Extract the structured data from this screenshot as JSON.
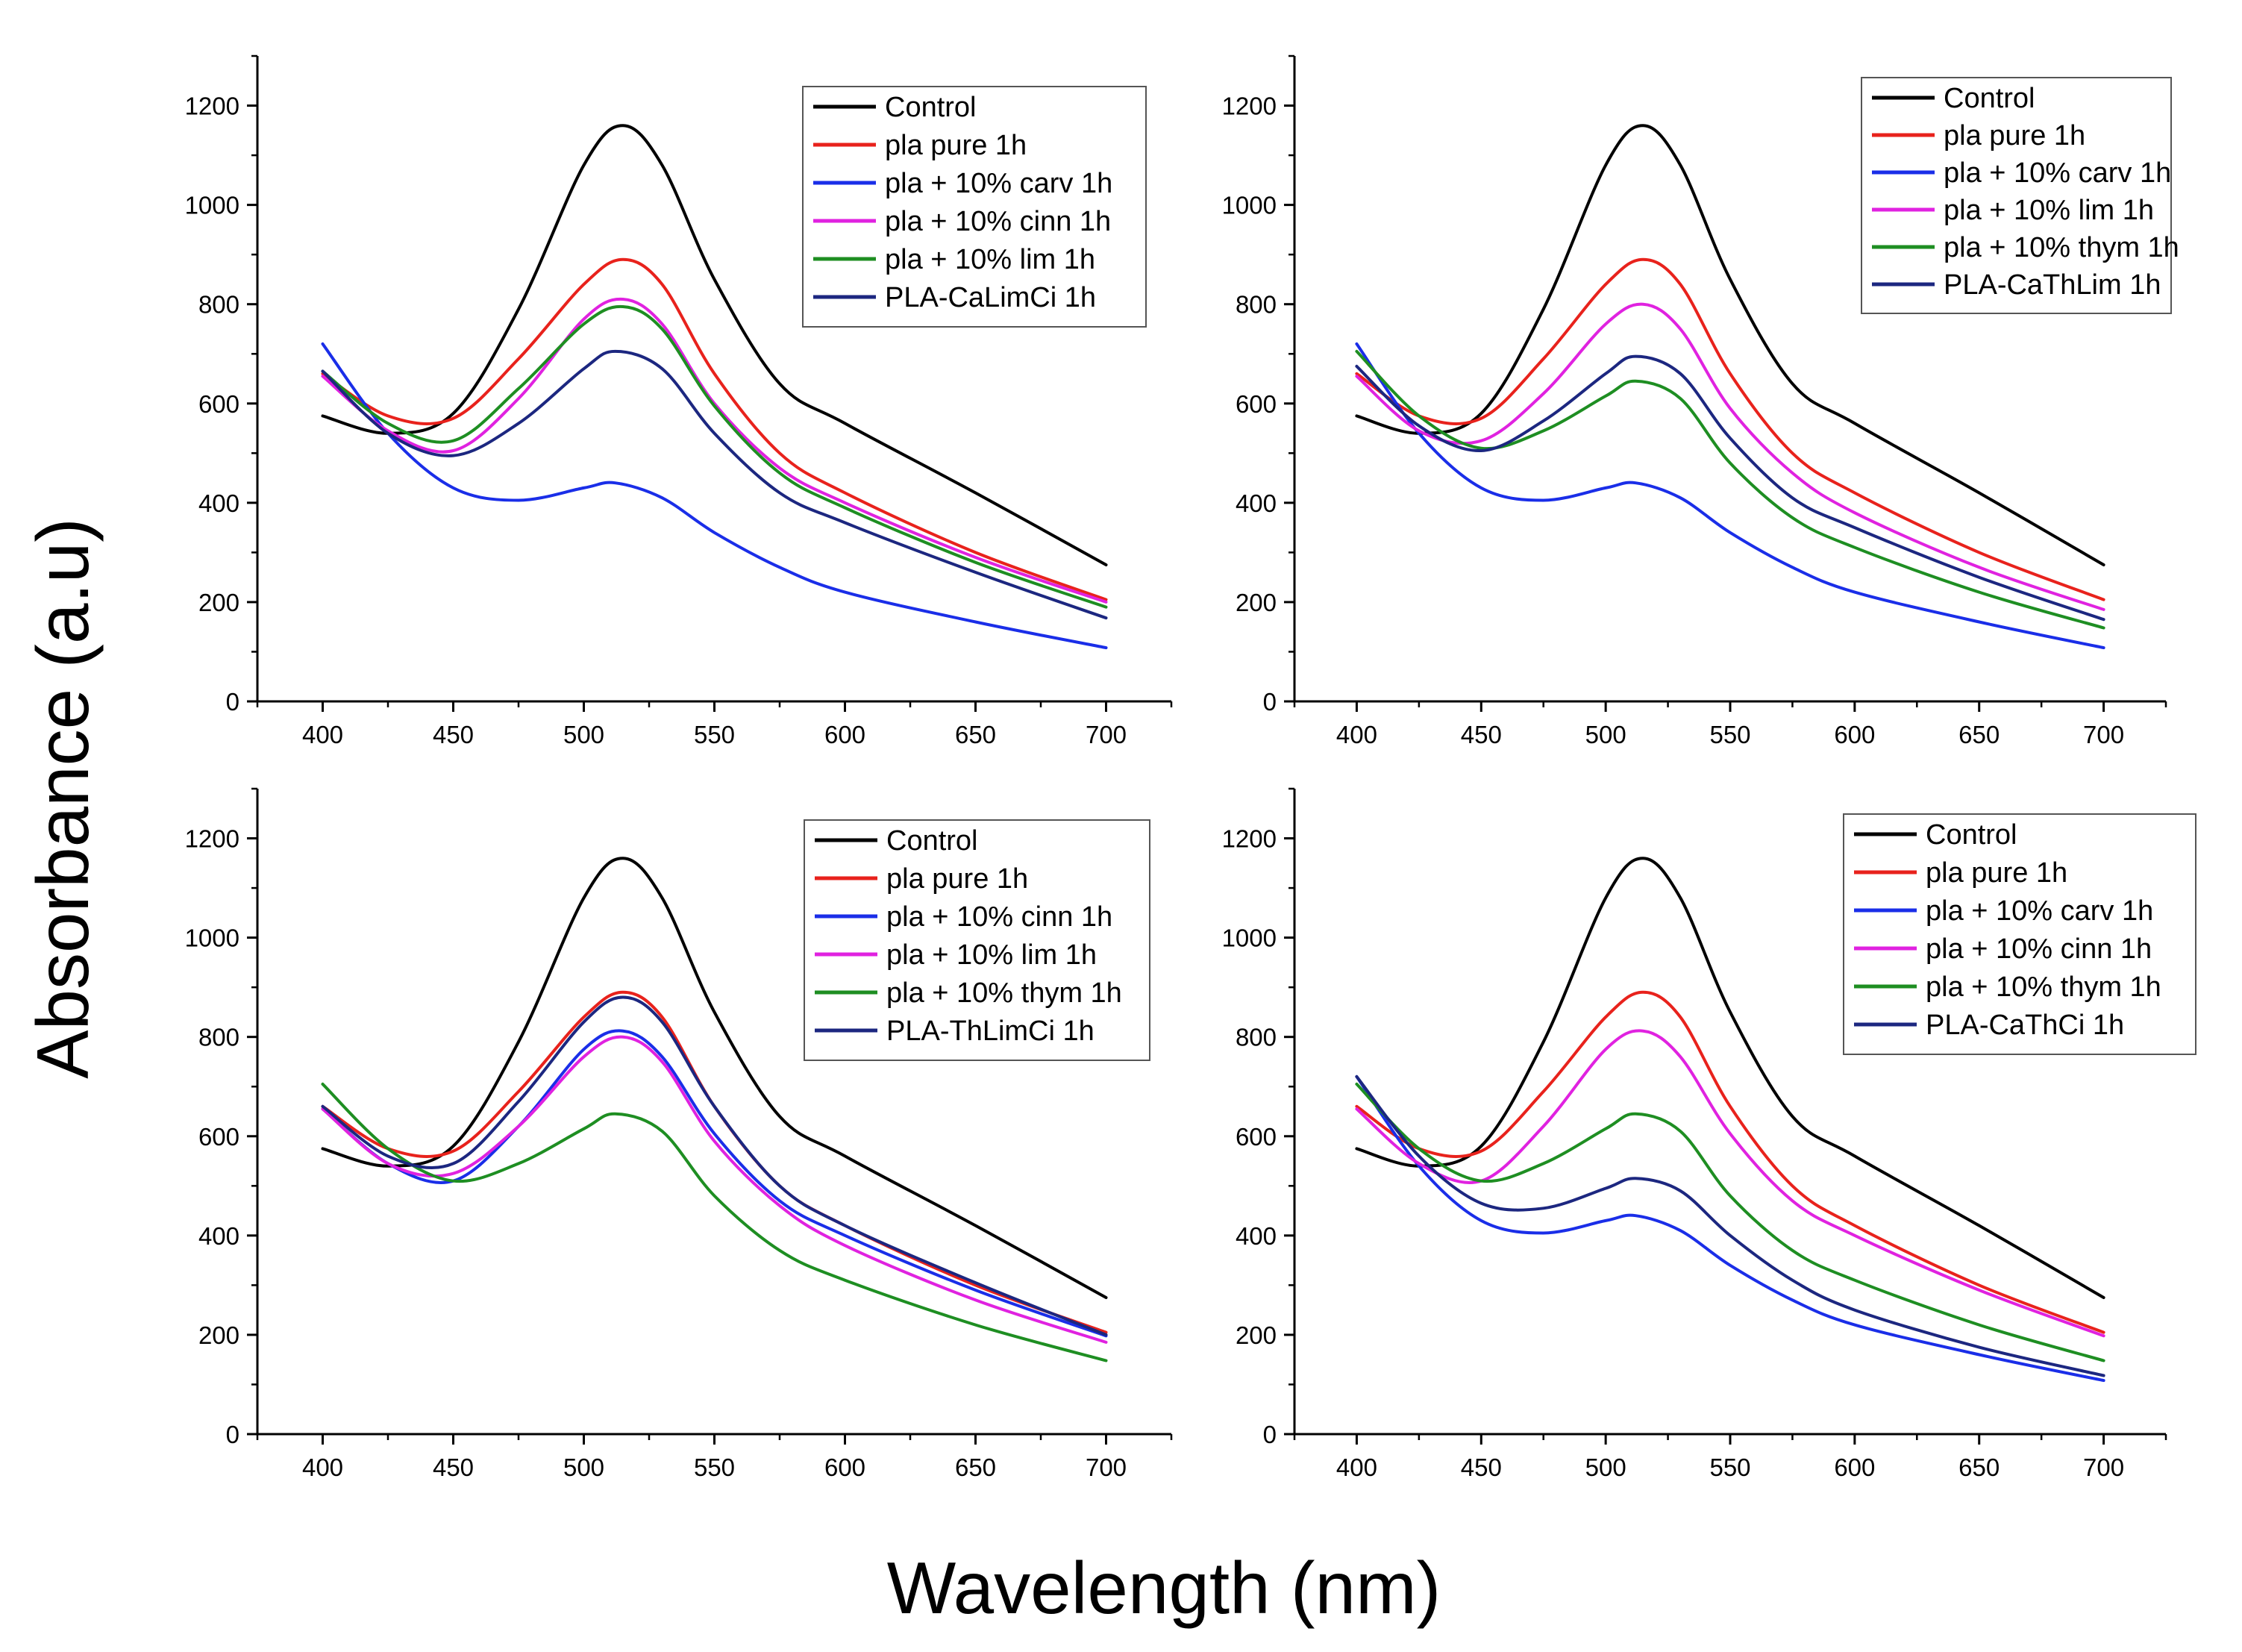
{
  "figure": {
    "ylabel": "Absorbance (a.u)",
    "xlabel": "Wavelength (nm)"
  },
  "chart_data": [
    {
      "type": "line",
      "title": "",
      "xlim": [
        375,
        725
      ],
      "ylim": [
        0,
        1300
      ],
      "xticks": [
        400,
        450,
        500,
        550,
        600,
        650,
        700
      ],
      "yticks": [
        0,
        200,
        400,
        600,
        800,
        1000,
        1200
      ],
      "legend_position": "top-right",
      "series": [
        {
          "name": "Control",
          "color": "#000000",
          "x": [
            400,
            425,
            450,
            475,
            500,
            515,
            530,
            550,
            575,
            600,
            650,
            700
          ],
          "y": [
            575,
            540,
            580,
            790,
            1080,
            1160,
            1080,
            850,
            640,
            560,
            420,
            275
          ]
        },
        {
          "name": "pla pure 1h",
          "color": "#e8221c",
          "x": [
            400,
            425,
            450,
            475,
            500,
            515,
            530,
            550,
            575,
            600,
            650,
            700
          ],
          "y": [
            660,
            575,
            570,
            690,
            840,
            890,
            840,
            660,
            500,
            420,
            300,
            205
          ]
        },
        {
          "name": "pla + 10% carv 1h",
          "color": "#1a2ee8",
          "x": [
            400,
            425,
            450,
            475,
            500,
            512,
            530,
            550,
            575,
            600,
            650,
            700
          ],
          "y": [
            720,
            540,
            430,
            405,
            430,
            440,
            410,
            340,
            270,
            220,
            160,
            108
          ]
        },
        {
          "name": "pla + 10% cinn 1h",
          "color": "#e022e0",
          "x": [
            400,
            425,
            450,
            475,
            500,
            515,
            530,
            550,
            575,
            600,
            650,
            700
          ],
          "y": [
            655,
            545,
            505,
            610,
            770,
            810,
            760,
            600,
            470,
            400,
            290,
            200
          ]
        },
        {
          "name": "pla + 10% lim 1h",
          "color": "#1e8e22",
          "x": [
            400,
            425,
            450,
            475,
            500,
            515,
            530,
            550,
            575,
            600,
            650,
            700
          ],
          "y": [
            665,
            560,
            525,
            630,
            760,
            795,
            750,
            595,
            460,
            390,
            280,
            190
          ]
        },
        {
          "name": "PLA-CaLimCi 1h",
          "color": "#1c2780",
          "x": [
            400,
            425,
            450,
            475,
            500,
            512,
            530,
            550,
            575,
            600,
            650,
            700
          ],
          "y": [
            665,
            540,
            495,
            560,
            670,
            705,
            670,
            540,
            420,
            360,
            260,
            168
          ]
        }
      ]
    },
    {
      "type": "line",
      "title": "",
      "xlim": [
        375,
        725
      ],
      "ylim": [
        0,
        1300
      ],
      "xticks": [
        400,
        450,
        500,
        550,
        600,
        650,
        700
      ],
      "yticks": [
        0,
        200,
        400,
        600,
        800,
        1000,
        1200
      ],
      "legend_position": "top-right",
      "series": [
        {
          "name": "Control",
          "color": "#000000",
          "x": [
            400,
            425,
            450,
            475,
            500,
            515,
            530,
            550,
            575,
            600,
            650,
            700
          ],
          "y": [
            575,
            540,
            580,
            790,
            1080,
            1160,
            1080,
            850,
            640,
            560,
            420,
            275
          ]
        },
        {
          "name": "pla pure 1h",
          "color": "#e8221c",
          "x": [
            400,
            425,
            450,
            475,
            500,
            515,
            530,
            550,
            575,
            600,
            650,
            700
          ],
          "y": [
            660,
            575,
            570,
            690,
            840,
            890,
            840,
            660,
            500,
            420,
            300,
            205
          ]
        },
        {
          "name": "pla + 10% carv 1h",
          "color": "#1a2ee8",
          "x": [
            400,
            425,
            450,
            475,
            500,
            512,
            530,
            550,
            575,
            600,
            650,
            700
          ],
          "y": [
            720,
            540,
            430,
            405,
            430,
            440,
            410,
            340,
            270,
            220,
            160,
            108
          ]
        },
        {
          "name": "pla + 10% lim 1h",
          "color": "#e022e0",
          "x": [
            400,
            425,
            450,
            475,
            500,
            515,
            530,
            550,
            575,
            600,
            650,
            700
          ],
          "y": [
            655,
            545,
            525,
            620,
            760,
            800,
            750,
            590,
            460,
            380,
            270,
            185
          ]
        },
        {
          "name": "pla + 10% thym 1h",
          "color": "#1e8e22",
          "x": [
            400,
            425,
            450,
            475,
            500,
            512,
            530,
            550,
            575,
            600,
            650,
            700
          ],
          "y": [
            705,
            575,
            510,
            545,
            615,
            645,
            610,
            480,
            370,
            310,
            220,
            148
          ]
        },
        {
          "name": "PLA-CaThLim 1h",
          "color": "#1c2780",
          "x": [
            400,
            425,
            450,
            475,
            500,
            512,
            530,
            550,
            575,
            600,
            650,
            700
          ],
          "y": [
            675,
            555,
            505,
            565,
            660,
            695,
            660,
            530,
            410,
            350,
            250,
            165
          ]
        }
      ]
    },
    {
      "type": "line",
      "title": "",
      "xlim": [
        375,
        725
      ],
      "ylim": [
        0,
        1300
      ],
      "xticks": [
        400,
        450,
        500,
        550,
        600,
        650,
        700
      ],
      "yticks": [
        0,
        200,
        400,
        600,
        800,
        1000,
        1200
      ],
      "legend_position": "top-right",
      "series": [
        {
          "name": "Control",
          "color": "#000000",
          "x": [
            400,
            425,
            450,
            475,
            500,
            515,
            530,
            550,
            575,
            600,
            650,
            700
          ],
          "y": [
            575,
            540,
            580,
            790,
            1080,
            1160,
            1080,
            850,
            640,
            560,
            420,
            275
          ]
        },
        {
          "name": "pla pure 1h",
          "color": "#e8221c",
          "x": [
            400,
            425,
            450,
            475,
            500,
            515,
            530,
            550,
            575,
            600,
            650,
            700
          ],
          "y": [
            660,
            575,
            570,
            690,
            840,
            890,
            840,
            660,
            500,
            420,
            300,
            205
          ]
        },
        {
          "name": "pla + 10% cinn 1h",
          "color": "#1a2ee8",
          "x": [
            400,
            425,
            450,
            475,
            500,
            515,
            530,
            550,
            575,
            600,
            650,
            700
          ],
          "y": [
            655,
            545,
            510,
            620,
            775,
            812,
            760,
            605,
            470,
            400,
            290,
            198
          ]
        },
        {
          "name": "pla + 10% lim 1h",
          "color": "#e022e0",
          "x": [
            400,
            425,
            450,
            475,
            500,
            515,
            530,
            550,
            575,
            600,
            650,
            700
          ],
          "y": [
            655,
            545,
            525,
            620,
            760,
            800,
            750,
            590,
            460,
            380,
            270,
            185
          ]
        },
        {
          "name": "pla + 10% thym 1h",
          "color": "#1e8e22",
          "x": [
            400,
            425,
            450,
            475,
            500,
            512,
            530,
            550,
            575,
            600,
            650,
            700
          ],
          "y": [
            705,
            575,
            510,
            545,
            615,
            645,
            610,
            480,
            370,
            310,
            220,
            148
          ]
        },
        {
          "name": "PLA-ThLimCi 1h",
          "color": "#1c2780",
          "x": [
            400,
            425,
            450,
            475,
            500,
            515,
            530,
            550,
            575,
            600,
            650,
            700
          ],
          "y": [
            660,
            560,
            545,
            670,
            830,
            880,
            830,
            660,
            500,
            420,
            305,
            200
          ]
        }
      ]
    },
    {
      "type": "line",
      "title": "",
      "xlim": [
        375,
        725
      ],
      "ylim": [
        0,
        1300
      ],
      "xticks": [
        400,
        450,
        500,
        550,
        600,
        650,
        700
      ],
      "yticks": [
        0,
        200,
        400,
        600,
        800,
        1000,
        1200
      ],
      "legend_position": "top-right",
      "series": [
        {
          "name": "Control",
          "color": "#000000",
          "x": [
            400,
            425,
            450,
            475,
            500,
            515,
            530,
            550,
            575,
            600,
            650,
            700
          ],
          "y": [
            575,
            540,
            580,
            790,
            1080,
            1160,
            1080,
            850,
            640,
            560,
            420,
            275
          ]
        },
        {
          "name": "pla pure 1h",
          "color": "#e8221c",
          "x": [
            400,
            425,
            450,
            475,
            500,
            515,
            530,
            550,
            575,
            600,
            650,
            700
          ],
          "y": [
            660,
            575,
            570,
            690,
            840,
            890,
            840,
            660,
            500,
            420,
            300,
            205
          ]
        },
        {
          "name": "pla + 10% carv 1h",
          "color": "#1a2ee8",
          "x": [
            400,
            425,
            450,
            475,
            500,
            512,
            530,
            550,
            575,
            600,
            650,
            700
          ],
          "y": [
            720,
            540,
            430,
            405,
            430,
            440,
            410,
            340,
            270,
            220,
            160,
            108
          ]
        },
        {
          "name": "pla + 10% cinn 1h",
          "color": "#e022e0",
          "x": [
            400,
            425,
            450,
            475,
            500,
            515,
            530,
            550,
            575,
            600,
            650,
            700
          ],
          "y": [
            655,
            545,
            510,
            620,
            775,
            812,
            760,
            605,
            470,
            400,
            290,
            198
          ]
        },
        {
          "name": "pla + 10% thym 1h",
          "color": "#1e8e22",
          "x": [
            400,
            425,
            450,
            475,
            500,
            512,
            530,
            550,
            575,
            600,
            650,
            700
          ],
          "y": [
            705,
            575,
            510,
            545,
            615,
            645,
            610,
            480,
            370,
            310,
            220,
            148
          ]
        },
        {
          "name": "PLA-CaThCi 1h",
          "color": "#1c2780",
          "x": [
            400,
            425,
            450,
            475,
            500,
            512,
            530,
            550,
            575,
            600,
            650,
            700
          ],
          "y": [
            720,
            560,
            465,
            455,
            495,
            515,
            490,
            400,
            310,
            250,
            175,
            118
          ]
        }
      ]
    }
  ]
}
